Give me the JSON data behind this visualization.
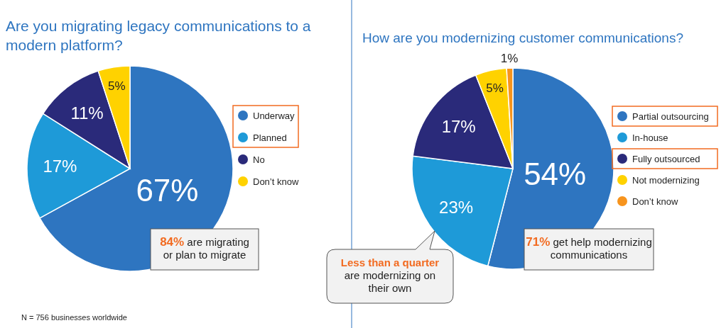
{
  "chart_data": [
    {
      "type": "pie",
      "title": "Are you migrating legacy communications to a modern platform?",
      "categories": [
        "Underway",
        "Planned",
        "No",
        "Don’t know"
      ],
      "values": [
        67,
        17,
        11,
        5
      ],
      "colors": [
        "#2e75c0",
        "#1e9ad8",
        "#2a2a7a",
        "#ffd200"
      ],
      "value_labels": [
        "67%",
        "17%",
        "11%",
        "5%"
      ],
      "legend": "right",
      "annotations": [
        "84% are migrating\nor plan to migrate",
        "N = 756 businesses worldwide"
      ]
    },
    {
      "type": "pie",
      "title": "How are you modernizing customer communications?",
      "categories": [
        "Partial outsourcing",
        "In-house",
        "Fully outsourced",
        "Not modernizing",
        "Don’t know"
      ],
      "values": [
        54,
        23,
        17,
        5,
        1
      ],
      "colors": [
        "#2e75c0",
        "#1e9ad8",
        "#2a2a7a",
        "#ffd200",
        "#f7941d"
      ],
      "value_labels": [
        "54%",
        "23%",
        "17%",
        "5%",
        "1%"
      ],
      "legend": "right",
      "annotations": [
        "71% get help modernizing\ncommunications",
        "Less than a quarter\nare modernizing on\ntheir own"
      ]
    }
  ]
}
